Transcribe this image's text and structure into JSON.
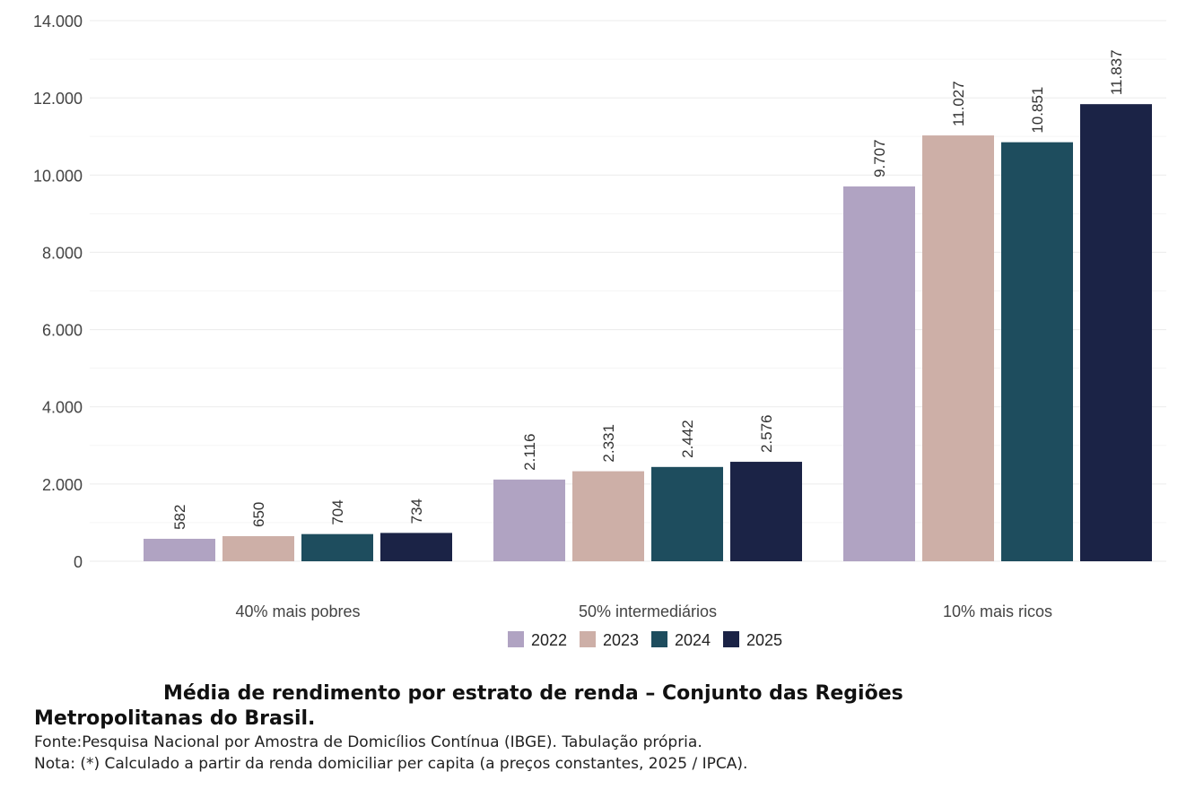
{
  "chart_data": {
    "type": "bar",
    "categories": [
      "40% mais pobres",
      "50% intermediários",
      "10% mais ricos"
    ],
    "series": [
      {
        "name": "2022",
        "color": "#b0a3c2",
        "values": [
          582,
          2116,
          9707
        ],
        "labels": [
          "582",
          "2.116",
          "9.707"
        ]
      },
      {
        "name": "2023",
        "color": "#cdafa7",
        "values": [
          650,
          2331,
          11027
        ],
        "labels": [
          "650",
          "2.331",
          "11.027"
        ]
      },
      {
        "name": "2024",
        "color": "#1e4d5e",
        "values": [
          704,
          2442,
          10851
        ],
        "labels": [
          "704",
          "2.442",
          "10.851"
        ]
      },
      {
        "name": "2025",
        "color": "#1b2346",
        "values": [
          734,
          2576,
          11837
        ],
        "labels": [
          "734",
          "2.576",
          "11.837"
        ]
      }
    ],
    "ylim": [
      0,
      14000
    ],
    "yticks": [
      0,
      2000,
      4000,
      6000,
      8000,
      10000,
      12000,
      14000
    ],
    "ytick_labels": [
      "0",
      "2.000",
      "4.000",
      "6.000",
      "8.000",
      "10.000",
      "12.000",
      "14.000"
    ],
    "grid": true,
    "legend": "bottom",
    "xlabel": "",
    "ylabel": ""
  },
  "caption": {
    "title_line1": "Média de rendimento por estrato de renda – Conjunto das Regiões",
    "title_line2": "Metropolitanas do Brasil.",
    "source": "Fonte:Pesquisa Nacional por Amostra de Domicílios Contínua (IBGE). Tabulação própria.",
    "note": "Nota: (*) Calculado a partir da renda domiciliar per capita (a preços constantes, 2025 / IPCA)."
  }
}
